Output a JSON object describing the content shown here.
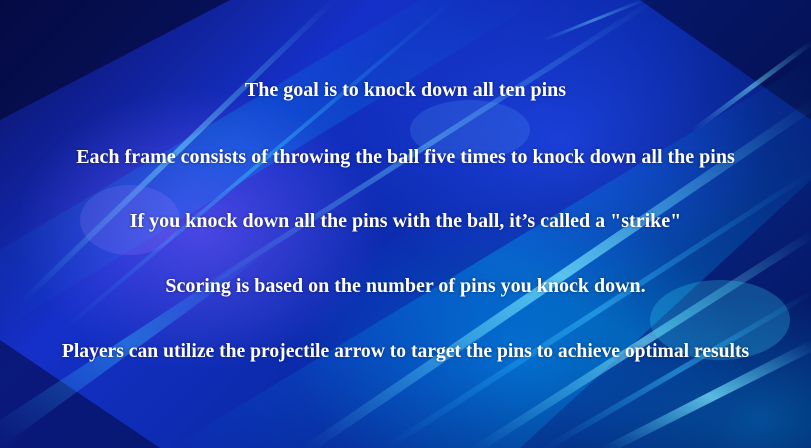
{
  "theme": {
    "text_color": "#ffffff",
    "background_dark": "#050a3a",
    "background_accent": "#1530c8",
    "highlight": "#28e6ff"
  },
  "instructions": [
    "The goal is to knock down all ten pins",
    "Each frame consists of throwing the ball five times to knock down all the pins",
    "If you knock down all the pins with the ball, it’s called a \"strike\"",
    "Scoring is based on the number of pins you knock down.",
    "Players can utilize the projectile arrow to target the pins to achieve optimal results"
  ]
}
